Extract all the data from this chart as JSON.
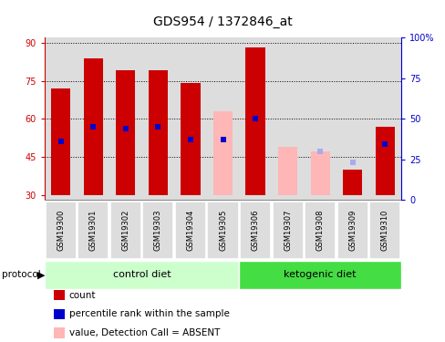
{
  "title": "GDS954 / 1372846_at",
  "samples": [
    "GSM19300",
    "GSM19301",
    "GSM19302",
    "GSM19303",
    "GSM19304",
    "GSM19305",
    "GSM19306",
    "GSM19307",
    "GSM19308",
    "GSM19309",
    "GSM19310"
  ],
  "ylim_left": [
    28,
    92
  ],
  "ylim_right": [
    0,
    100
  ],
  "yticks_left": [
    30,
    45,
    60,
    75,
    90
  ],
  "yticks_right": [
    0,
    25,
    50,
    75,
    100
  ],
  "ytick_labels_right": [
    "0",
    "25",
    "50",
    "75",
    "100%"
  ],
  "red_values": [
    72,
    84,
    79,
    79,
    74,
    null,
    88,
    null,
    null,
    40,
    57
  ],
  "blue_values": [
    51,
    57,
    56,
    57,
    52,
    52,
    60,
    null,
    null,
    null,
    50
  ],
  "pink_values": [
    null,
    null,
    null,
    null,
    null,
    63,
    null,
    49,
    47,
    null,
    null
  ],
  "lavender_values": [
    null,
    null,
    null,
    null,
    null,
    52,
    null,
    null,
    47,
    43,
    null
  ],
  "bar_bottom": 30,
  "bar_width": 0.6,
  "red_color": "#CC0000",
  "blue_color": "#0000CC",
  "pink_color": "#FFB6B6",
  "lavender_color": "#AAAAEE",
  "column_bg": "#DDDDDD",
  "control_light": "#CCFFCC",
  "ketogenic_dark": "#44DD44",
  "grid_color": "black",
  "grid_linestyle": ":",
  "grid_linewidth": 0.7,
  "left_tick_color": "#CC0000",
  "right_tick_color": "#0000CC",
  "tick_fontsize": 7,
  "title_fontsize": 10,
  "label_fontsize": 7.5
}
